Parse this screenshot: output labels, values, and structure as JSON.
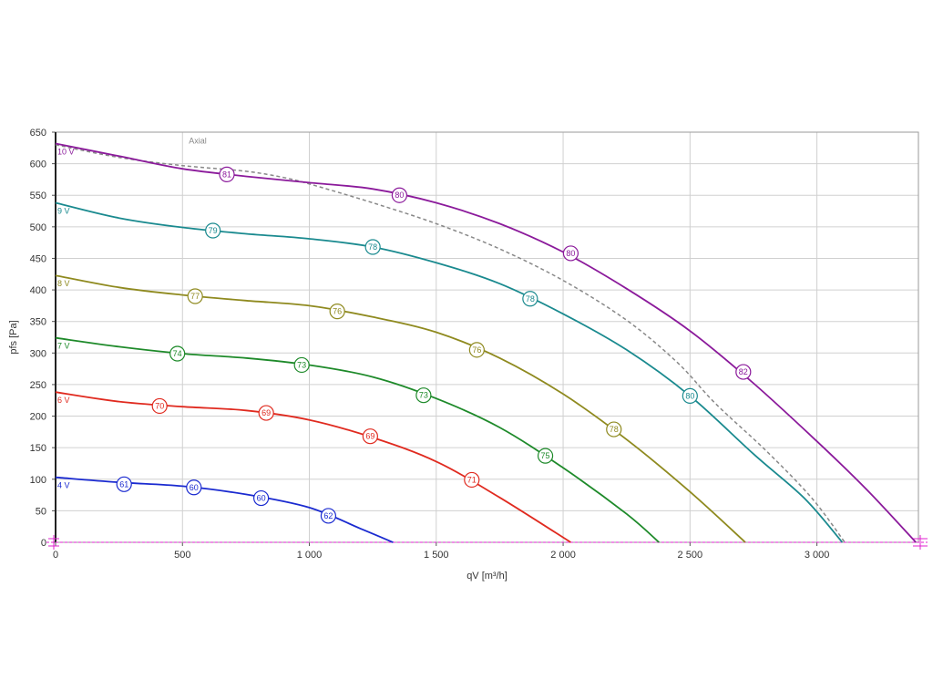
{
  "chart_data": {
    "type": "line",
    "xlabel": "qV [m³/h]",
    "ylabel": "pfs [Pa]",
    "xlim": [
      0,
      3400
    ],
    "ylim": [
      0,
      650
    ],
    "x_ticks": [
      0,
      500,
      1000,
      1500,
      2000,
      2500,
      3000
    ],
    "x_tick_labels": [
      "0",
      "500",
      "1 000",
      "1 500",
      "2 000",
      "2 500",
      "3 000"
    ],
    "y_ticks": [
      0,
      50,
      100,
      150,
      200,
      250,
      300,
      350,
      400,
      450,
      500,
      550,
      600,
      650
    ],
    "y_tick_labels": [
      "0",
      "50",
      "100",
      "150",
      "200",
      "250",
      "300",
      "350",
      "400",
      "450",
      "500",
      "550",
      "600",
      "650"
    ],
    "grid": true,
    "annotation": "Axial",
    "series": [
      {
        "name": "10 V",
        "color": "#8b1a9b",
        "points": [
          [
            0,
            632
          ],
          [
            250,
            612
          ],
          [
            500,
            592
          ],
          [
            750,
            580
          ],
          [
            1000,
            570
          ],
          [
            1250,
            560
          ],
          [
            1500,
            538
          ],
          [
            1750,
            505
          ],
          [
            2000,
            460
          ],
          [
            2250,
            402
          ],
          [
            2500,
            335
          ],
          [
            2750,
            252
          ],
          [
            3000,
            160
          ],
          [
            3200,
            82
          ],
          [
            3390,
            0
          ]
        ],
        "markers": [
          {
            "x": 675,
            "y": 583,
            "label": "81"
          },
          {
            "x": 1355,
            "y": 550,
            "label": "80"
          },
          {
            "x": 2030,
            "y": 458,
            "label": "80"
          },
          {
            "x": 2710,
            "y": 270,
            "label": "82"
          }
        ]
      },
      {
        "name": "9 V",
        "color": "#1a8a8f",
        "points": [
          [
            0,
            538
          ],
          [
            250,
            514
          ],
          [
            500,
            499
          ],
          [
            750,
            489
          ],
          [
            1000,
            481
          ],
          [
            1250,
            468
          ],
          [
            1500,
            443
          ],
          [
            1750,
            410
          ],
          [
            2000,
            362
          ],
          [
            2250,
            305
          ],
          [
            2500,
            232
          ],
          [
            2750,
            140
          ],
          [
            2950,
            70
          ],
          [
            3100,
            0
          ]
        ],
        "markers": [
          {
            "x": 620,
            "y": 494,
            "label": "79"
          },
          {
            "x": 1250,
            "y": 468,
            "label": "78"
          },
          {
            "x": 1870,
            "y": 386,
            "label": "78"
          },
          {
            "x": 2500,
            "y": 232,
            "label": "80"
          }
        ]
      },
      {
        "name": "8 V",
        "color": "#8f8a1f",
        "points": [
          [
            0,
            423
          ],
          [
            250,
            404
          ],
          [
            500,
            392
          ],
          [
            750,
            383
          ],
          [
            1000,
            375
          ],
          [
            1250,
            357
          ],
          [
            1500,
            333
          ],
          [
            1750,
            292
          ],
          [
            2000,
            235
          ],
          [
            2250,
            163
          ],
          [
            2500,
            80
          ],
          [
            2718,
            0
          ]
        ],
        "markers": [
          {
            "x": 550,
            "y": 390,
            "label": "77"
          },
          {
            "x": 1110,
            "y": 366,
            "label": "76"
          },
          {
            "x": 1660,
            "y": 305,
            "label": "76"
          },
          {
            "x": 2200,
            "y": 179,
            "label": "78"
          }
        ]
      },
      {
        "name": "7 V",
        "color": "#1e8a2a",
        "points": [
          [
            0,
            324
          ],
          [
            250,
            310
          ],
          [
            500,
            299
          ],
          [
            750,
            292
          ],
          [
            1000,
            281
          ],
          [
            1250,
            262
          ],
          [
            1500,
            228
          ],
          [
            1750,
            182
          ],
          [
            2000,
            118
          ],
          [
            2250,
            45
          ],
          [
            2378,
            0
          ]
        ],
        "markers": [
          {
            "x": 480,
            "y": 299,
            "label": "74"
          },
          {
            "x": 970,
            "y": 281,
            "label": "73"
          },
          {
            "x": 1450,
            "y": 233,
            "label": "73"
          },
          {
            "x": 1930,
            "y": 137,
            "label": "75"
          }
        ]
      },
      {
        "name": "6 V",
        "color": "#e02a1f",
        "points": [
          [
            0,
            238
          ],
          [
            250,
            223
          ],
          [
            500,
            215
          ],
          [
            750,
            209
          ],
          [
            1000,
            194
          ],
          [
            1250,
            166
          ],
          [
            1500,
            128
          ],
          [
            1750,
            71
          ],
          [
            2030,
            0
          ]
        ],
        "markers": [
          {
            "x": 410,
            "y": 216,
            "label": "70"
          },
          {
            "x": 830,
            "y": 205,
            "label": "69"
          },
          {
            "x": 1240,
            "y": 168,
            "label": "69"
          },
          {
            "x": 1640,
            "y": 99,
            "label": "71"
          }
        ]
      },
      {
        "name": "4 V",
        "color": "#1a2ad0",
        "points": [
          [
            0,
            103
          ],
          [
            250,
            95
          ],
          [
            500,
            89
          ],
          [
            750,
            76
          ],
          [
            1000,
            55
          ],
          [
            1200,
            22
          ],
          [
            1330,
            0
          ]
        ],
        "markers": [
          {
            "x": 270,
            "y": 92,
            "label": "61"
          },
          {
            "x": 545,
            "y": 87,
            "label": "60"
          },
          {
            "x": 810,
            "y": 70,
            "label": "60"
          },
          {
            "x": 1075,
            "y": 42,
            "label": "62"
          }
        ]
      }
    ],
    "reference_curve": {
      "name": "Axial",
      "color": "#888888",
      "style": "dashed",
      "points": [
        [
          0,
          630
        ],
        [
          250,
          610
        ],
        [
          500,
          597
        ],
        [
          750,
          588
        ],
        [
          900,
          578
        ],
        [
          1000,
          568
        ],
        [
          1250,
          538
        ],
        [
          1500,
          505
        ],
        [
          1750,
          465
        ],
        [
          2000,
          415
        ],
        [
          2250,
          352
        ],
        [
          2450,
          285
        ],
        [
          2600,
          220
        ],
        [
          2800,
          145
        ],
        [
          2980,
          70
        ],
        [
          3110,
          0
        ]
      ]
    },
    "colors": {
      "grid": "#d0d0d0",
      "axis": "#555555",
      "baseline": "#e020d0"
    }
  }
}
